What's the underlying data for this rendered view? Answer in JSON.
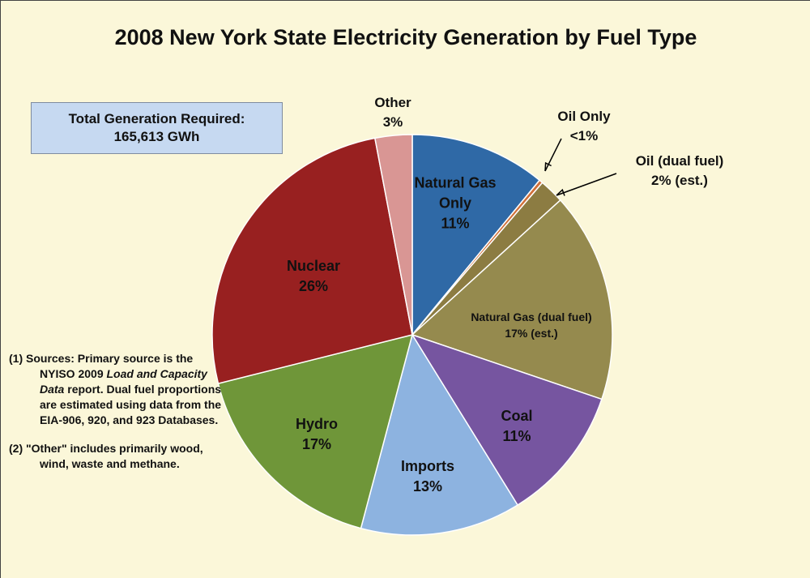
{
  "chart_data": {
    "type": "pie",
    "title": "2008 New York State Electricity Generation by Fuel Type",
    "categories": [
      "Natural Gas Only",
      "Oil Only",
      "Oil (dual fuel)",
      "Natural Gas (dual fuel)",
      "Coal",
      "Imports",
      "Hydro",
      "Nuclear",
      "Other"
    ],
    "values": [
      11,
      0.3,
      2,
      17,
      11,
      13,
      17,
      26,
      3
    ],
    "value_labels": [
      "11%",
      "<1%",
      "2% (est.)",
      "17% (est.)",
      "11%",
      "13%",
      "17%",
      "26%",
      "3%"
    ],
    "colors": [
      "#2f69a6",
      "#d0703a",
      "#8c7c42",
      "#958a4e",
      "#7655a0",
      "#8db3e0",
      "#6f9639",
      "#982020",
      "#d99694"
    ],
    "total_box": [
      "Total Generation Required:",
      "165,613 GWh"
    ],
    "notes": [
      [
        "(1)  Sources:  Primary source is the NYISO 2009 ",
        "Load and Capacity Data",
        " report.  Dual fuel proportions are estimated using data from the EIA-906, 920, and 923 Databases."
      ],
      [
        "(2)  \"Other\" includes primarily wood, wind, waste and methane."
      ]
    ]
  }
}
